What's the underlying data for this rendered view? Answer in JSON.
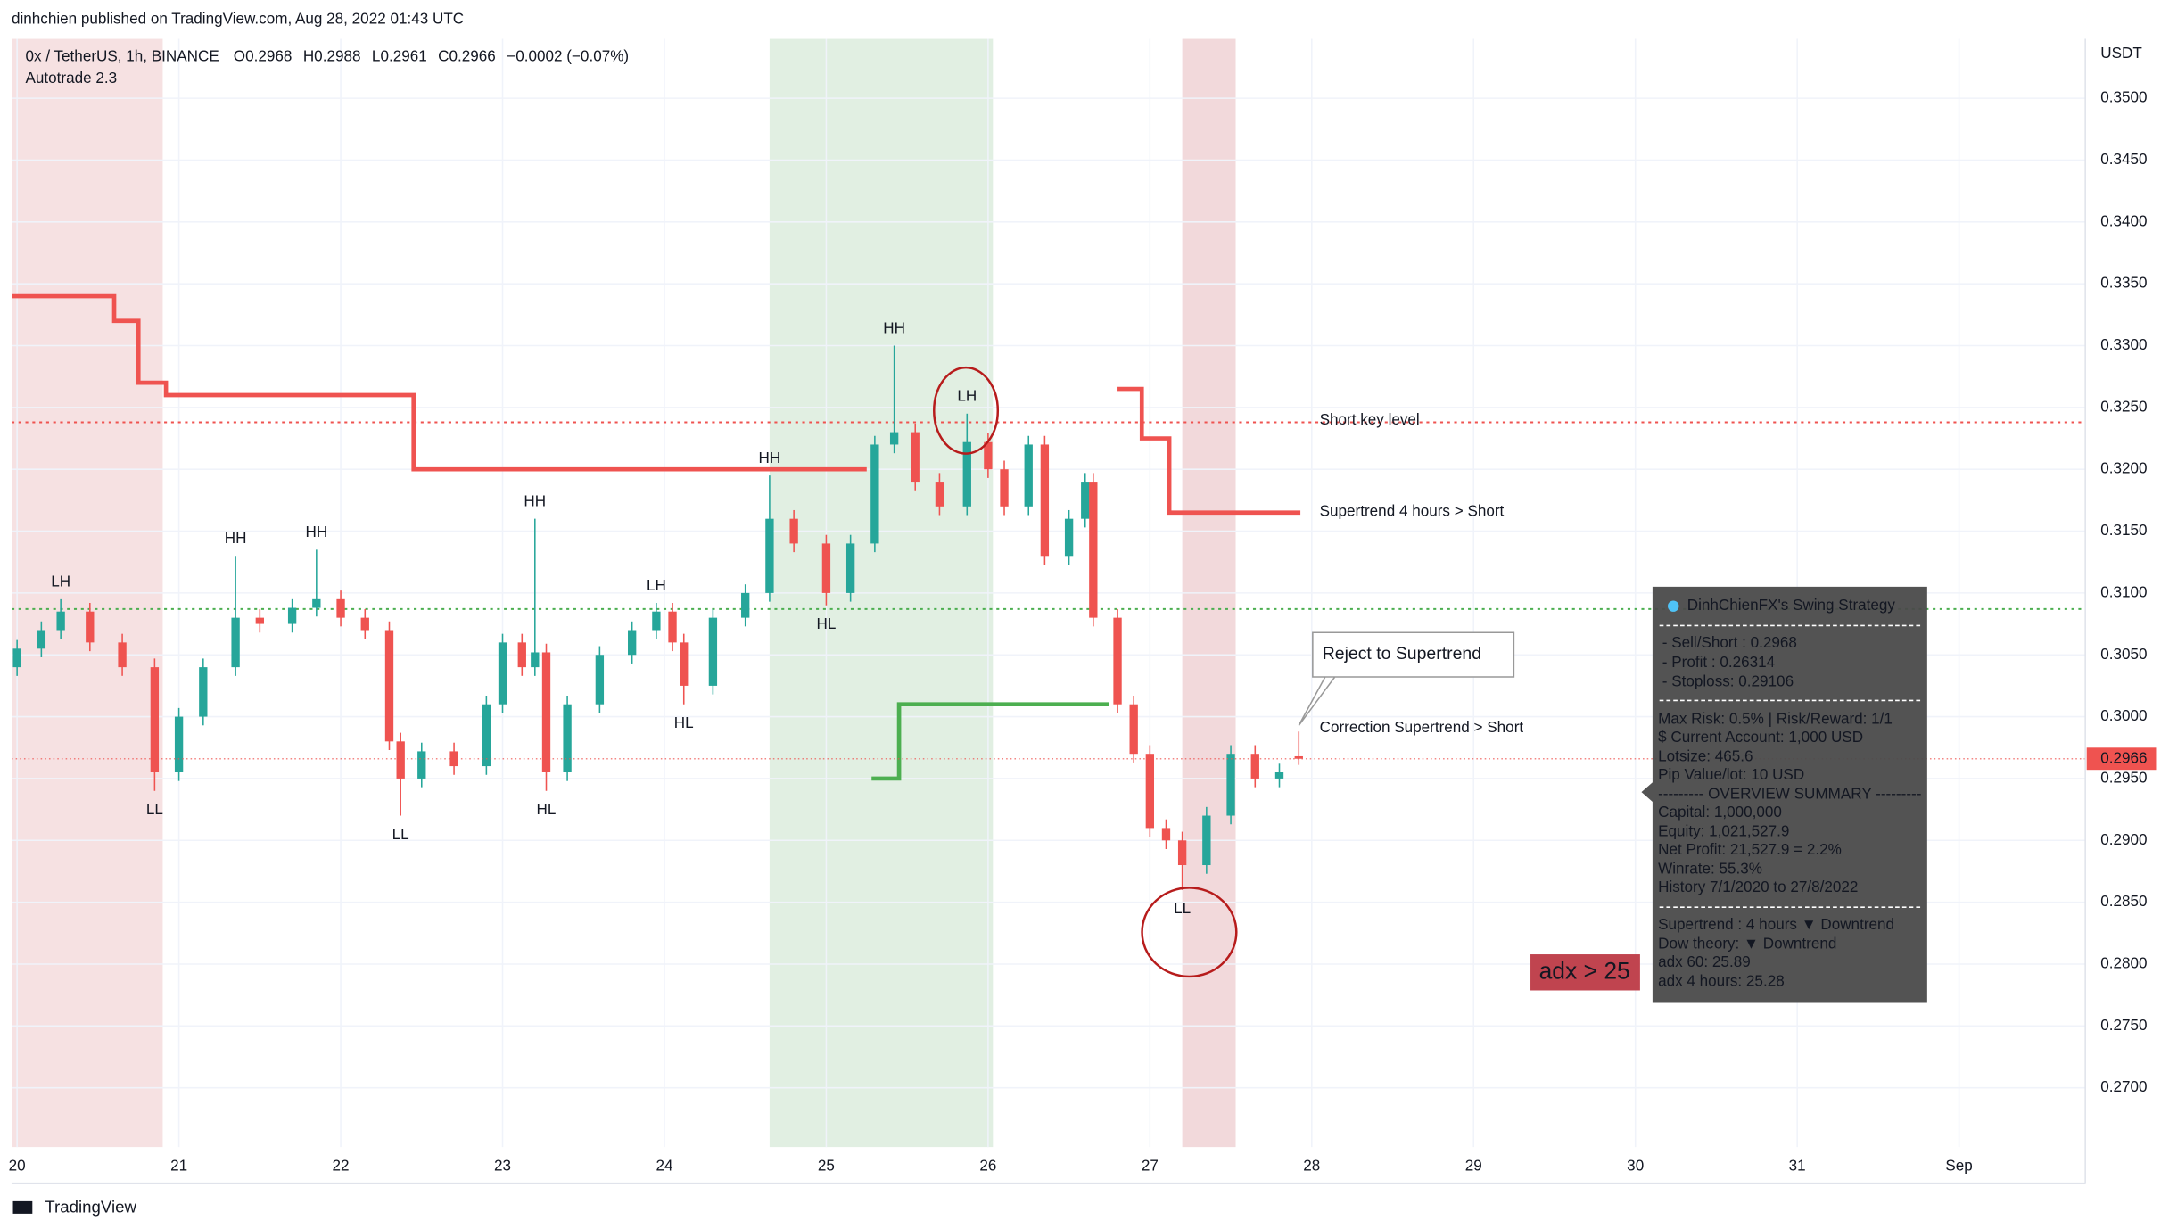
{
  "header": "dinhchien published on TradingView.com, Aug 28, 2022 01:43 UTC",
  "footer": "TradingView",
  "chart_data": {
    "type": "candlestick",
    "symbol": "0x / TetherUS, 1h, BINANCE",
    "legend_values": [
      "O0.2968",
      "H0.2988",
      "L0.2961",
      "C0.2966",
      "−0.0002 (−0.07%)"
    ],
    "indicator": "Autotrade 2.3",
    "y_unit": "USDT",
    "xlim": [
      19.966,
      32.78
    ],
    "ylim": [
      0.2652,
      0.3548
    ],
    "xticks": [
      20,
      21,
      22,
      23,
      24,
      25,
      26,
      27,
      28,
      29,
      30,
      31,
      {
        "value": 32,
        "label": "Sep"
      }
    ],
    "yticks": [
      {
        "value": 0.35,
        "label": "0.3500"
      },
      {
        "value": 0.345,
        "label": "0.3450"
      },
      {
        "value": 0.34,
        "label": "0.3400"
      },
      {
        "value": 0.335,
        "label": "0.3350"
      },
      {
        "value": 0.33,
        "label": "0.3300"
      },
      {
        "value": 0.325,
        "label": "0.3250"
      },
      {
        "value": 0.32,
        "label": "0.3200"
      },
      {
        "value": 0.315,
        "label": "0.3150"
      },
      {
        "value": 0.31,
        "label": "0.3100"
      },
      {
        "value": 0.305,
        "label": "0.3050"
      },
      {
        "value": 0.3,
        "label": "0.3000"
      },
      {
        "value": 0.295,
        "label": "0.2950"
      },
      {
        "value": 0.29,
        "label": "0.2900"
      },
      {
        "value": 0.285,
        "label": "0.2850"
      },
      {
        "value": 0.28,
        "label": "0.2800"
      },
      {
        "value": 0.275,
        "label": "0.2750"
      },
      {
        "value": 0.27,
        "label": "0.2700"
      }
    ],
    "grid": true,
    "up_color": "#26a69a",
    "down_color": "#ef5350",
    "x": [
      20.0,
      20.15,
      20.27,
      20.45,
      20.65,
      20.85,
      21.0,
      21.15,
      21.35,
      21.5,
      21.7,
      21.85,
      22.0,
      22.15,
      22.3,
      22.37,
      22.5,
      22.7,
      22.9,
      23.0,
      23.12,
      23.2,
      23.27,
      23.4,
      23.6,
      23.8,
      23.95,
      24.05,
      24.12,
      24.3,
      24.5,
      24.65,
      24.8,
      25.0,
      25.15,
      25.3,
      25.42,
      25.55,
      25.7,
      25.87,
      26.0,
      26.1,
      26.25,
      26.35,
      26.5,
      26.6,
      26.65,
      26.8,
      26.9,
      27.0,
      27.1,
      27.2,
      27.35,
      27.5,
      27.65,
      27.8,
      27.92
    ],
    "open": [
      0.304,
      0.3055,
      0.307,
      0.3085,
      0.306,
      0.304,
      0.2955,
      0.3,
      0.304,
      0.308,
      0.3075,
      0.3088,
      0.3095,
      0.308,
      0.307,
      0.298,
      0.295,
      0.2972,
      0.296,
      0.301,
      0.306,
      0.304,
      0.3052,
      0.2955,
      0.301,
      0.305,
      0.307,
      0.3085,
      0.306,
      0.3025,
      0.308,
      0.31,
      0.316,
      0.314,
      0.31,
      0.314,
      0.322,
      0.323,
      0.319,
      0.317,
      0.3222,
      0.32,
      0.317,
      0.322,
      0.313,
      0.316,
      0.319,
      0.308,
      0.301,
      0.297,
      0.291,
      0.29,
      0.288,
      0.292,
      0.297,
      0.295,
      0.2968
    ],
    "high": [
      0.3062,
      0.3077,
      0.3095,
      0.3092,
      0.3067,
      0.3047,
      0.3007,
      0.3047,
      0.313,
      0.3087,
      0.3095,
      0.3135,
      0.3102,
      0.3087,
      0.3077,
      0.2987,
      0.2979,
      0.2979,
      0.3017,
      0.3067,
      0.3067,
      0.316,
      0.3059,
      0.3017,
      0.3057,
      0.3077,
      0.3092,
      0.3092,
      0.3067,
      0.3087,
      0.3107,
      0.3195,
      0.3167,
      0.3147,
      0.3147,
      0.3227,
      0.33,
      0.3237,
      0.3197,
      0.3245,
      0.3229,
      0.3207,
      0.3227,
      0.3227,
      0.3167,
      0.3197,
      0.3197,
      0.3087,
      0.3017,
      0.2977,
      0.2917,
      0.2907,
      0.2927,
      0.2977,
      0.2977,
      0.2962,
      0.2988
    ],
    "low": [
      0.3033,
      0.3048,
      0.3063,
      0.3053,
      0.3033,
      0.294,
      0.2948,
      0.2993,
      0.3033,
      0.3068,
      0.3068,
      0.3081,
      0.3073,
      0.3063,
      0.2973,
      0.292,
      0.2943,
      0.2953,
      0.2953,
      0.3003,
      0.3033,
      0.3033,
      0.294,
      0.2948,
      0.3003,
      0.3043,
      0.3063,
      0.3053,
      0.301,
      0.3018,
      0.3073,
      0.3093,
      0.3133,
      0.309,
      0.3093,
      0.3133,
      0.3213,
      0.3183,
      0.3163,
      0.3163,
      0.3193,
      0.3163,
      0.3163,
      0.3123,
      0.3123,
      0.3153,
      0.3073,
      0.3003,
      0.2963,
      0.2903,
      0.2893,
      0.286,
      0.2873,
      0.2913,
      0.2943,
      0.2943,
      0.2961
    ],
    "close": [
      0.3055,
      0.307,
      0.3085,
      0.306,
      0.304,
      0.2955,
      0.3,
      0.304,
      0.308,
      0.3075,
      0.3088,
      0.3095,
      0.308,
      0.307,
      0.298,
      0.295,
      0.2972,
      0.296,
      0.301,
      0.306,
      0.304,
      0.3052,
      0.2955,
      0.301,
      0.305,
      0.307,
      0.3085,
      0.306,
      0.3025,
      0.308,
      0.31,
      0.316,
      0.314,
      0.31,
      0.314,
      0.322,
      0.323,
      0.319,
      0.317,
      0.3222,
      0.32,
      0.317,
      0.322,
      0.313,
      0.316,
      0.319,
      0.308,
      0.301,
      0.297,
      0.291,
      0.29,
      0.288,
      0.292,
      0.297,
      0.295,
      0.2955,
      0.2966
    ],
    "current_price": 0.2966,
    "series": [
      {
        "color": "#ef5350",
        "x": [
          19.97,
          20.6,
          20.75,
          20.92,
          22.45,
          25.25
        ],
        "values": [
          0.334,
          0.332,
          0.327,
          0.326,
          0.32,
          0.32
        ]
      },
      {
        "color": "#4caf50",
        "x": [
          25.28,
          25.45,
          26.75
        ],
        "values": [
          0.295,
          0.301,
          0.301
        ]
      },
      {
        "color": "#ef5350",
        "x": [
          26.8,
          26.95,
          27.12,
          27.93
        ],
        "values": [
          0.3265,
          0.3225,
          0.3165,
          0.3165
        ]
      }
    ],
    "zones": [
      {
        "from": 19.97,
        "to": 20.9,
        "color": "#f2d4d6"
      },
      {
        "from": 24.65,
        "to": 26.03,
        "color": "#d4e8d6"
      },
      {
        "from": 27.2,
        "to": 27.53,
        "color": "#ecc9cc"
      }
    ],
    "levels": [
      {
        "value": 0.3238,
        "color": "#ef5350"
      },
      {
        "value": 0.3087,
        "color": "#4caf50"
      }
    ],
    "swing_labels": [
      {
        "text": "LH",
        "x": 20.27,
        "y": 0.3095
      },
      {
        "text": "LL",
        "x": 20.85,
        "y": 0.294
      },
      {
        "text": "HH",
        "x": 21.35,
        "y": 0.313
      },
      {
        "text": "HH",
        "x": 21.85,
        "y": 0.3135
      },
      {
        "text": "LL",
        "x": 22.37,
        "y": 0.292
      },
      {
        "text": "HH",
        "x": 23.2,
        "y": 0.316
      },
      {
        "text": "HL",
        "x": 23.27,
        "y": 0.294
      },
      {
        "text": "LH",
        "x": 23.95,
        "y": 0.3092
      },
      {
        "text": "HL",
        "x": 24.12,
        "y": 0.301
      },
      {
        "text": "HH",
        "x": 24.65,
        "y": 0.3195
      },
      {
        "text": "HL",
        "x": 25.0,
        "y": 0.309
      },
      {
        "text": "HH",
        "x": 25.42,
        "y": 0.33
      },
      {
        "text": "LH",
        "x": 25.87,
        "y": 0.3245
      },
      {
        "text": "LL",
        "x": 27.2,
        "y": 0.286
      }
    ],
    "annotations": [
      "Short key level",
      "Supertrend 4 hours > Short",
      "Correction Supertrend  > Short",
      "Reject to Supertrend",
      "adx > 25"
    ],
    "info_title": "DinhChienFX's Swing Strategy",
    "info_lines": [
      "- Sell/Short   : 0.2968",
      "- Profit   : 0.26314",
      "- Stoploss: 0.29106",
      "Max Risk: 0.5% | Risk/Reward: 1/1",
      "$ Current Account: 1,000 USD",
      "Lotsize: 465.6",
      "Pip Value/lot: 10 USD",
      "--------- OVERVIEW SUMMARY ---------",
      "Capital: 1,000,000",
      "Equity: 1,021,527.9",
      "Net Profit: 21,527.9 = 2.2%",
      "Winrate: 55.3%",
      "History 7/1/2020 to 27/8/2022",
      "Supertrend : 4 hours  ▼  Downtrend",
      "Dow theory:  ▼  Downtrend",
      "adx 60: 25.89",
      "adx 4 hours: 25.28"
    ]
  }
}
